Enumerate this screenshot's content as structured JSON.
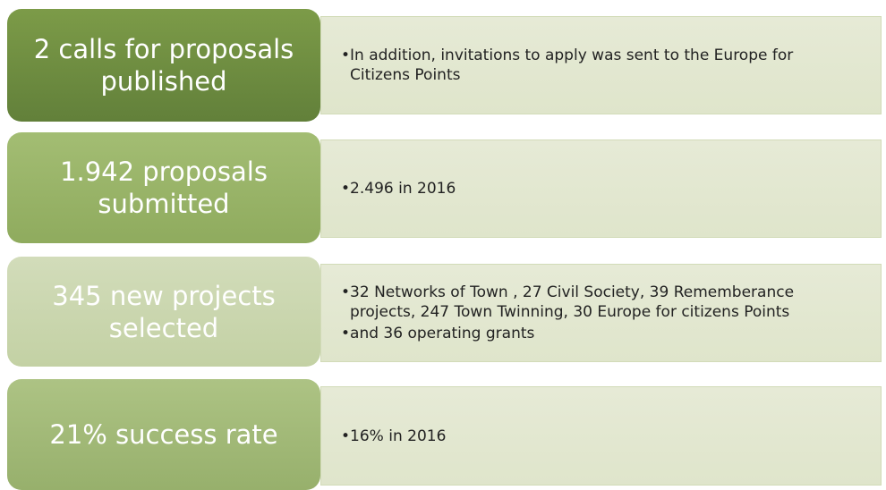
{
  "rows": [
    {
      "title_lines": [
        "2 calls for proposals",
        "published"
      ],
      "bullets": [
        "In addition, invitations to apply was sent to the Europe for Citizens  Points"
      ]
    },
    {
      "title_lines": [
        "1.942 proposals",
        "submitted"
      ],
      "bullets": [
        "2.496 in 2016"
      ]
    },
    {
      "title_lines": [
        "345  new projects",
        "selected"
      ],
      "bullets": [
        "32 Networks of Town , 27 Civil Society, 39 Rememberance projects, 247 Town Twinning, 30 Europe for citizens Points",
        "and 36 operating grants"
      ]
    },
    {
      "title_lines": [
        "21% success rate"
      ],
      "bullets": [
        "16% in 2016"
      ]
    }
  ]
}
